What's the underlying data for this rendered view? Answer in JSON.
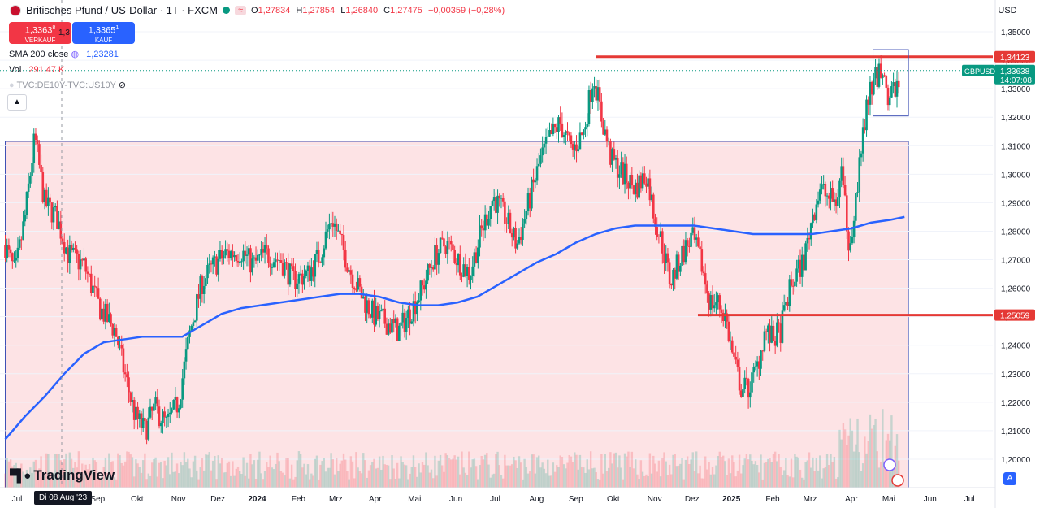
{
  "header": {
    "title": "Britisches Pfund / US-Dollar · 1T · FXCM",
    "waves_label": "≈",
    "ohlc": [
      {
        "k": "O",
        "v": "1,27834"
      },
      {
        "k": "H",
        "v": "1,27854"
      },
      {
        "k": "L",
        "v": "1,26840"
      },
      {
        "k": "C",
        "v": "1,27475"
      },
      {
        "k": "",
        "v": "−0,00359 (−0,28%)"
      }
    ]
  },
  "trade": {
    "sell_price": "1,3363",
    "sell_sup": "8",
    "sell_label": "VERKAUF",
    "spread": "1,3",
    "buy_price": "1,3365",
    "buy_sup": "1",
    "buy_label": "KAUF"
  },
  "indicators": {
    "sma_label": "SMA 200 close",
    "sma_value": "1,23281",
    "vol_label": "Vol",
    "vol_value": "291,47 K",
    "compare_label": "TVC:DE10Y-TVC:US10Y"
  },
  "brand": "TradingView",
  "axis": {
    "currency": "USD",
    "symbol_tag": "GBPUSD",
    "price_label": "1,33638",
    "countdown": "14:07:08",
    "level_hi": "1,34123",
    "level_lo": "1,25059",
    "crosshair_date": "Di 08 Aug '23",
    "corner_a": "A",
    "corner_l": "L"
  },
  "colors": {
    "up": "#089981",
    "down": "#f23645",
    "sma": "#2962ff",
    "level": "#e53935",
    "zone": "#fde3e5",
    "box": "#3f51b5"
  },
  "chart_data": {
    "type": "candlestick",
    "symbol": "GBPUSD",
    "ylim": [
      1.195,
      1.353
    ],
    "y_ticks": [
      1.2,
      1.21,
      1.22,
      1.23,
      1.24,
      1.25,
      1.26,
      1.27,
      1.28,
      1.29,
      1.3,
      1.31,
      1.32,
      1.33,
      1.34,
      1.35
    ],
    "y_tick_labels": [
      "1,20000",
      "1,21000",
      "1,22000",
      "1,23000",
      "1,24000",
      "1,25000",
      "1,26000",
      "1,27000",
      "1,28000",
      "1,29000",
      "1,30000",
      "1,31000",
      "1,32000",
      "1,33000",
      "1,34000",
      "1,35000"
    ],
    "xlim": [
      0,
      24.4
    ],
    "x_ticks": [
      {
        "label": "Jul",
        "m": 0.3
      },
      {
        "label": "Sep",
        "m": 2.35
      },
      {
        "label": "Okt",
        "m": 3.35
      },
      {
        "label": "Nov",
        "m": 4.4
      },
      {
        "label": "Dez",
        "m": 5.4
      },
      {
        "label": "2024",
        "m": 6.4,
        "bold": true
      },
      {
        "label": "Feb",
        "m": 7.45
      },
      {
        "label": "Mrz",
        "m": 8.4
      },
      {
        "label": "Apr",
        "m": 9.4
      },
      {
        "label": "Mai",
        "m": 10.4
      },
      {
        "label": "Jun",
        "m": 11.45
      },
      {
        "label": "Jul",
        "m": 12.45
      },
      {
        "label": "Aug",
        "m": 13.5
      },
      {
        "label": "Sep",
        "m": 14.5
      },
      {
        "label": "Okt",
        "m": 15.45
      },
      {
        "label": "Nov",
        "m": 16.5
      },
      {
        "label": "Dez",
        "m": 17.45
      },
      {
        "label": "2025",
        "m": 18.45,
        "bold": true
      },
      {
        "label": "Feb",
        "m": 19.5
      },
      {
        "label": "Mrz",
        "m": 20.45
      },
      {
        "label": "Apr",
        "m": 21.5
      },
      {
        "label": "Mai",
        "m": 22.45
      },
      {
        "label": "Jun",
        "m": 23.5
      },
      {
        "label": "Jul",
        "m": 24.5
      }
    ],
    "close_path": [
      [
        0,
        1.275
      ],
      [
        0.25,
        1.265
      ],
      [
        0.5,
        1.285
      ],
      [
        0.75,
        1.313
      ],
      [
        1.0,
        1.29
      ],
      [
        1.3,
        1.285
      ],
      [
        1.6,
        1.272
      ],
      [
        2.0,
        1.268
      ],
      [
        2.4,
        1.253
      ],
      [
        2.8,
        1.245
      ],
      [
        3.0,
        1.232
      ],
      [
        3.3,
        1.215
      ],
      [
        3.55,
        1.21
      ],
      [
        3.8,
        1.218
      ],
      [
        4.1,
        1.212
      ],
      [
        4.4,
        1.22
      ],
      [
        4.7,
        1.245
      ],
      [
        5.0,
        1.262
      ],
      [
        5.3,
        1.268
      ],
      [
        5.6,
        1.272
      ],
      [
        6.0,
        1.273
      ],
      [
        6.3,
        1.268
      ],
      [
        6.6,
        1.272
      ],
      [
        7.0,
        1.27
      ],
      [
        7.3,
        1.263
      ],
      [
        7.7,
        1.265
      ],
      [
        8.0,
        1.272
      ],
      [
        8.3,
        1.285
      ],
      [
        8.55,
        1.275
      ],
      [
        8.8,
        1.265
      ],
      [
        9.1,
        1.256
      ],
      [
        9.4,
        1.25
      ],
      [
        9.7,
        1.248
      ],
      [
        10.0,
        1.245
      ],
      [
        10.3,
        1.252
      ],
      [
        10.6,
        1.26
      ],
      [
        10.9,
        1.271
      ],
      [
        11.2,
        1.276
      ],
      [
        11.5,
        1.27
      ],
      [
        11.8,
        1.265
      ],
      [
        12.1,
        1.28
      ],
      [
        12.4,
        1.292
      ],
      [
        12.7,
        1.285
      ],
      [
        13.0,
        1.275
      ],
      [
        13.3,
        1.29
      ],
      [
        13.6,
        1.305
      ],
      [
        13.85,
        1.313
      ],
      [
        14.1,
        1.318
      ],
      [
        14.4,
        1.308
      ],
      [
        14.7,
        1.315
      ],
      [
        14.95,
        1.335
      ],
      [
        15.15,
        1.32
      ],
      [
        15.4,
        1.305
      ],
      [
        15.7,
        1.3
      ],
      [
        16.0,
        1.295
      ],
      [
        16.3,
        1.3
      ],
      [
        16.5,
        1.285
      ],
      [
        16.7,
        1.275
      ],
      [
        16.9,
        1.262
      ],
      [
        17.2,
        1.272
      ],
      [
        17.45,
        1.278
      ],
      [
        17.7,
        1.268
      ],
      [
        17.9,
        1.255
      ],
      [
        18.1,
        1.255
      ],
      [
        18.3,
        1.25
      ],
      [
        18.5,
        1.235
      ],
      [
        18.7,
        1.225
      ],
      [
        18.9,
        1.225
      ],
      [
        19.1,
        1.232
      ],
      [
        19.3,
        1.245
      ],
      [
        19.5,
        1.242
      ],
      [
        19.7,
        1.245
      ],
      [
        19.9,
        1.258
      ],
      [
        20.1,
        1.265
      ],
      [
        20.3,
        1.27
      ],
      [
        20.5,
        1.285
      ],
      [
        20.7,
        1.295
      ],
      [
        20.9,
        1.292
      ],
      [
        21.1,
        1.29
      ],
      [
        21.25,
        1.3
      ],
      [
        21.45,
        1.275
      ],
      [
        21.6,
        1.29
      ],
      [
        21.75,
        1.308
      ],
      [
        21.9,
        1.325
      ],
      [
        22.1,
        1.333
      ],
      [
        22.3,
        1.338
      ],
      [
        22.45,
        1.325
      ],
      [
        22.6,
        1.33
      ],
      [
        22.75,
        1.336
      ]
    ],
    "sma_200": [
      [
        0,
        1.207
      ],
      [
        0.5,
        1.215
      ],
      [
        1.0,
        1.222
      ],
      [
        1.5,
        1.23
      ],
      [
        2.0,
        1.237
      ],
      [
        2.5,
        1.241
      ],
      [
        3.0,
        1.242
      ],
      [
        3.5,
        1.243
      ],
      [
        4.0,
        1.243
      ],
      [
        4.5,
        1.243
      ],
      [
        5.0,
        1.247
      ],
      [
        5.5,
        1.251
      ],
      [
        6.0,
        1.253
      ],
      [
        6.5,
        1.254
      ],
      [
        7.0,
        1.255
      ],
      [
        7.5,
        1.256
      ],
      [
        8.0,
        1.257
      ],
      [
        8.5,
        1.258
      ],
      [
        9.0,
        1.258
      ],
      [
        9.5,
        1.257
      ],
      [
        10.0,
        1.255
      ],
      [
        10.5,
        1.254
      ],
      [
        11.0,
        1.254
      ],
      [
        11.5,
        1.255
      ],
      [
        12.0,
        1.257
      ],
      [
        12.5,
        1.261
      ],
      [
        13.0,
        1.265
      ],
      [
        13.5,
        1.269
      ],
      [
        14.0,
        1.272
      ],
      [
        14.5,
        1.276
      ],
      [
        15.0,
        1.279
      ],
      [
        15.5,
        1.281
      ],
      [
        16.0,
        1.282
      ],
      [
        16.5,
        1.282
      ],
      [
        17.0,
        1.282
      ],
      [
        17.5,
        1.282
      ],
      [
        18.0,
        1.281
      ],
      [
        18.5,
        1.28
      ],
      [
        19.0,
        1.279
      ],
      [
        19.5,
        1.279
      ],
      [
        20.0,
        1.279
      ],
      [
        20.5,
        1.279
      ],
      [
        21.0,
        1.28
      ],
      [
        21.5,
        1.281
      ],
      [
        22.0,
        1.283
      ],
      [
        22.5,
        1.284
      ],
      [
        22.85,
        1.285
      ]
    ],
    "levels": [
      {
        "name": "resistance",
        "price": 1.34123,
        "from_m": 15.0,
        "to_m": 24.4
      },
      {
        "name": "support",
        "price": 1.25059,
        "from_m": 17.6,
        "to_m": 24.4
      }
    ],
    "zone": {
      "price_top": 1.3115,
      "price_bottom": 1.195,
      "from_m": 0,
      "to_m": 22.95
    },
    "box": {
      "price_top": 1.342,
      "price_bottom": 1.325,
      "from_m": 22.05,
      "to_m": 22.95
    },
    "last_price": 1.33638
  }
}
